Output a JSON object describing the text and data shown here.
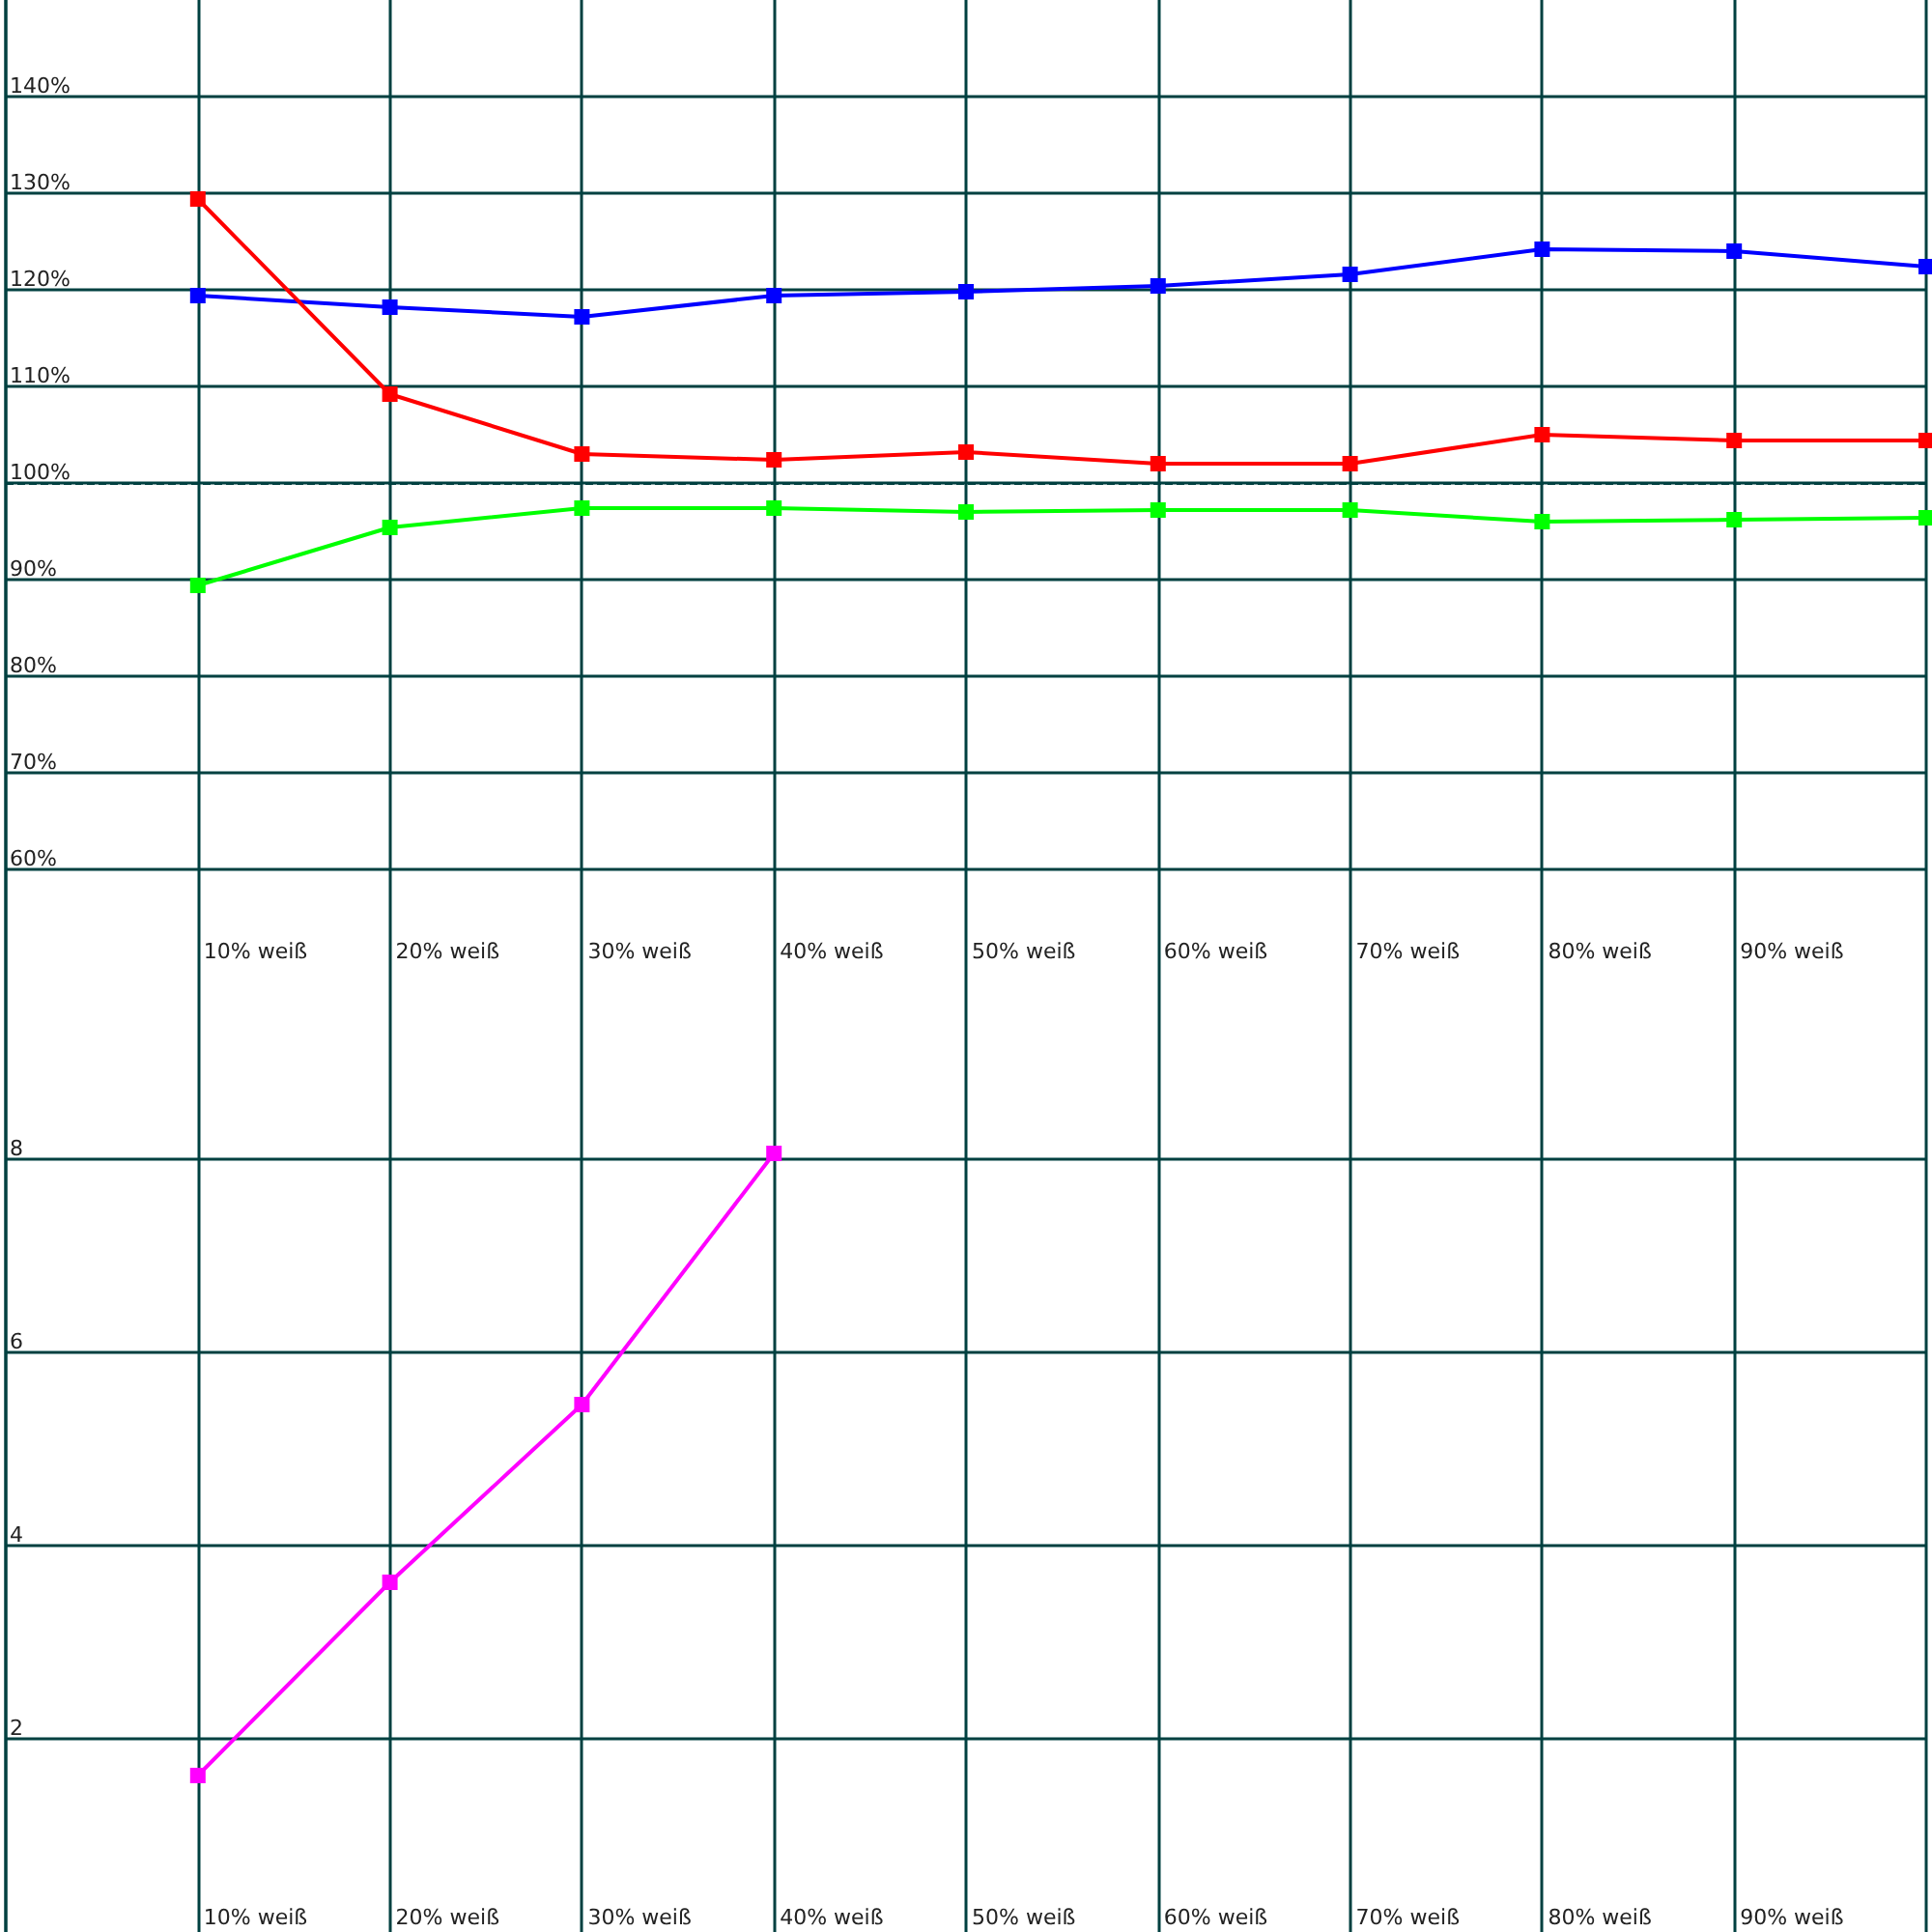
{
  "chart_data": [
    {
      "type": "line",
      "categories": [
        null,
        "10% weiß",
        "20% weiß",
        "30% weiß",
        "40% weiß",
        "50% weiß",
        "60% weiß",
        "70% weiß",
        "80% weiß",
        "90% weiß",
        null
      ],
      "series": [
        {
          "color": "#0000ff",
          "values": [
            null,
            119.4,
            118.2,
            117.2,
            119.4,
            119.8,
            120.4,
            121.6,
            124.2,
            124,
            122.4
          ]
        },
        {
          "color": "#ff0000",
          "values": [
            null,
            129.4,
            109.2,
            103,
            102.4,
            103.2,
            102,
            102,
            105,
            104.4,
            104.4
          ]
        },
        {
          "color": "#00ff00",
          "values": [
            null,
            89.4,
            95.4,
            97.4,
            97.4,
            97,
            97.2,
            97.2,
            96,
            96.2,
            96.4
          ]
        }
      ],
      "ylim": [
        50,
        150
      ],
      "yticks": [
        {
          "value": 60,
          "label": "60%"
        },
        {
          "value": 70,
          "label": "70%"
        },
        {
          "value": 80,
          "label": "80%"
        },
        {
          "value": 90,
          "label": "90%"
        },
        {
          "value": 100,
          "label": "100%"
        },
        {
          "value": 110,
          "label": "110%"
        },
        {
          "value": 120,
          "label": "120%"
        },
        {
          "value": 130,
          "label": "130%"
        },
        {
          "value": 140,
          "label": "140%"
        }
      ],
      "ref_lines": [
        {
          "axis": "y",
          "value": 100,
          "color": "#004040",
          "line_style": "dashed"
        }
      ],
      "grid": true,
      "marker": "square",
      "line_style": "solid"
    },
    {
      "type": "line",
      "categories": [
        null,
        "10% weiß",
        "20% weiß",
        "30% weiß",
        "40% weiß",
        "50% weiß",
        "60% weiß",
        "70% weiß",
        "80% weiß",
        "90% weiß",
        null
      ],
      "series": [
        {
          "color": "#ff00ff",
          "values": [
            null,
            1.62,
            3.62,
            5.46,
            8.06,
            null,
            null,
            null,
            null,
            null,
            null
          ]
        }
      ],
      "ylim": [
        0,
        10
      ],
      "yticks": [
        2,
        4,
        6,
        8
      ],
      "grid": true,
      "marker": "square",
      "line_style": "solid"
    }
  ]
}
